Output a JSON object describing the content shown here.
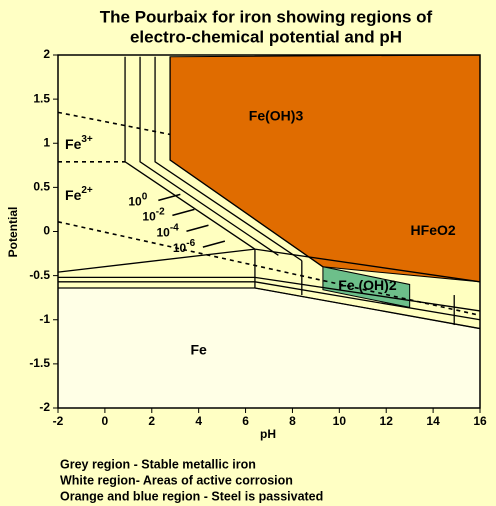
{
  "chart_data": {
    "type": "pourbaix",
    "title": [
      "The Pourbaix for iron showing regions of",
      "electro-chemical potential and pH"
    ],
    "x_label": "pH",
    "y_label": "Potential",
    "xlim": [
      -2,
      16
    ],
    "ylim": [
      -2,
      2
    ],
    "xticks": [
      -2,
      0,
      2,
      4,
      6,
      8,
      10,
      12,
      14,
      16
    ],
    "yticks": [
      2,
      1.5,
      1,
      0.5,
      0,
      -0.5,
      -1,
      -1.5,
      -2
    ],
    "regions": [
      {
        "name": "Fe",
        "color": "#ffffe6",
        "x": [
          -2,
          6.4,
          16,
          16,
          -2
        ],
        "y": [
          -0.64,
          -0.64,
          -1.1,
          -2,
          -2
        ]
      },
      {
        "name": "Fe(OH)3",
        "color": "#e06c00",
        "x": [
          2.78,
          16,
          16,
          9.3,
          2.78
        ],
        "y": [
          1.98,
          2,
          -0.57,
          -0.4,
          0.81
        ]
      },
      {
        "name": "Fe (OH)2",
        "color": "#6dbf8a",
        "x": [
          9.3,
          13,
          13,
          9.3
        ],
        "y": [
          -0.4,
          -0.6,
          -0.86,
          -0.66
        ]
      }
    ],
    "region_labels": [
      {
        "text": "Fe(OH)3",
        "x": 7.3,
        "y": 1.3
      },
      {
        "text": "HFeO2",
        "x": 14,
        "y": 0
      },
      {
        "text": "Fe (OH)2",
        "x": 11.2,
        "y": -0.62
      },
      {
        "text": "Fe",
        "x": 4,
        "y": -1.35
      }
    ],
    "ion_labels": [
      {
        "base": "Fe",
        "sup": "3+",
        "x": -1.7,
        "y": 0.98
      },
      {
        "base": "Fe",
        "sup": "2+",
        "x": -1.7,
        "y": 0.4
      }
    ],
    "concentration_labels": [
      {
        "base": "10",
        "sup": "0",
        "x": 1.0,
        "y": 0.33
      },
      {
        "base": "10",
        "sup": "-2",
        "x": 1.6,
        "y": 0.16
      },
      {
        "base": "10",
        "sup": "-4",
        "x": 2.2,
        "y": -0.02
      },
      {
        "base": "10",
        "sup": "-6",
        "x": 2.9,
        "y": -0.2
      }
    ],
    "lines": [
      {
        "dashed": true,
        "x": [
          -2,
          2.78
        ],
        "y": [
          1.35,
          1.1
        ]
      },
      {
        "dashed": true,
        "x": [
          -2,
          0.86
        ],
        "y": [
          0.79,
          0.79
        ]
      },
      {
        "dashed": true,
        "x": [
          -2,
          16
        ],
        "y": [
          0.11,
          -0.95
        ]
      },
      {
        "dashed": false,
        "x": [
          0.86,
          0.86,
          6.4
        ],
        "y": [
          1.98,
          0.79,
          -0.2
        ]
      },
      {
        "dashed": false,
        "x": [
          1.5,
          1.5,
          7.4
        ],
        "y": [
          1.98,
          0.79,
          -0.27
        ]
      },
      {
        "dashed": false,
        "x": [
          2.14,
          2.14,
          8.4
        ],
        "y": [
          1.98,
          0.79,
          -0.33
        ]
      },
      {
        "dashed": false,
        "x": [
          2.78,
          2.78,
          9.3
        ],
        "y": [
          1.98,
          0.81,
          -0.4
        ]
      },
      {
        "dashed": false,
        "x": [
          -2,
          6.4,
          16
        ],
        "y": [
          -0.46,
          -0.2,
          -0.57
        ]
      },
      {
        "dashed": false,
        "x": [
          -2,
          6.4,
          16
        ],
        "y": [
          -0.52,
          -0.52,
          -0.9
        ]
      },
      {
        "dashed": false,
        "x": [
          -2,
          6.4,
          16
        ],
        "y": [
          -0.57,
          -0.57,
          -1.0
        ]
      },
      {
        "dashed": false,
        "x": [
          -2,
          6.4,
          16
        ],
        "y": [
          -0.64,
          -0.64,
          -1.1
        ]
      },
      {
        "dashed": false,
        "x": [
          6.4,
          6.4
        ],
        "y": [
          -0.2,
          -0.64
        ]
      },
      {
        "dashed": false,
        "x": [
          8.4,
          8.4
        ],
        "y": [
          -0.33,
          -0.72
        ]
      },
      {
        "dashed": false,
        "x": [
          14.9,
          14.9
        ],
        "y": [
          -0.72,
          -1.06
        ]
      }
    ],
    "notes": [
      "Grey region - Stable metallic iron",
      "White region- Areas of active corrosion",
      "Orange and blue region - Steel is passivated"
    ]
  }
}
